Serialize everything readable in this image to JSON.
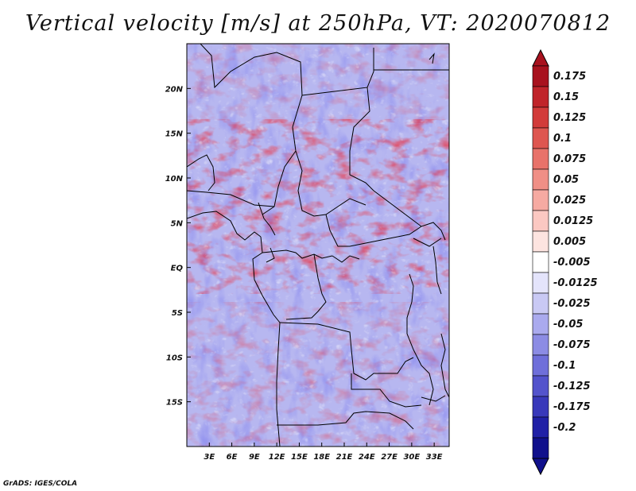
{
  "title": "Vertical velocity [m/s] at 250hPa, VT: 2020070812",
  "footer": "GrADS: IGES/COLA",
  "map": {
    "lon_range": [
      0,
      35
    ],
    "lat_range": [
      -20,
      25
    ],
    "lon_ticks": [
      {
        "value": 3,
        "label": "3E"
      },
      {
        "value": 6,
        "label": "6E"
      },
      {
        "value": 9,
        "label": "9E"
      },
      {
        "value": 12,
        "label": "12E"
      },
      {
        "value": 15,
        "label": "15E"
      },
      {
        "value": 18,
        "label": "18E"
      },
      {
        "value": 21,
        "label": "21E"
      },
      {
        "value": 24,
        "label": "24E"
      },
      {
        "value": 27,
        "label": "27E"
      },
      {
        "value": 30,
        "label": "30E"
      },
      {
        "value": 33,
        "label": "33E"
      }
    ],
    "lat_ticks": [
      {
        "value": 20,
        "label": "20N"
      },
      {
        "value": 15,
        "label": "15N"
      },
      {
        "value": 10,
        "label": "10N"
      },
      {
        "value": 5,
        "label": "5N"
      },
      {
        "value": 0,
        "label": "EQ"
      },
      {
        "value": -5,
        "label": "5S"
      },
      {
        "value": -10,
        "label": "10S"
      },
      {
        "value": -15,
        "label": "15S"
      }
    ]
  },
  "colorbar": {
    "labels": [
      "0.175",
      "0.15",
      "0.125",
      "0.1",
      "0.075",
      "0.05",
      "0.025",
      "0.0125",
      "0.005",
      "-0.005",
      "-0.0125",
      "-0.025",
      "-0.05",
      "-0.075",
      "-0.1",
      "-0.125",
      "-0.175",
      "-0.2"
    ],
    "colors": [
      "#a8121e",
      "#c0242a",
      "#d23b3a",
      "#de5650",
      "#e8726a",
      "#f08f86",
      "#f6aaa2",
      "#fbc8c2",
      "#fde4e0",
      "#ffffff",
      "#e4e4fb",
      "#c9c9f4",
      "#aaaaee",
      "#8c8ce4",
      "#6f6fda",
      "#5353cc",
      "#3838ba",
      "#2020a6",
      "#10108c"
    ],
    "low_color": "#10108c",
    "high_color": "#a8121e"
  }
}
